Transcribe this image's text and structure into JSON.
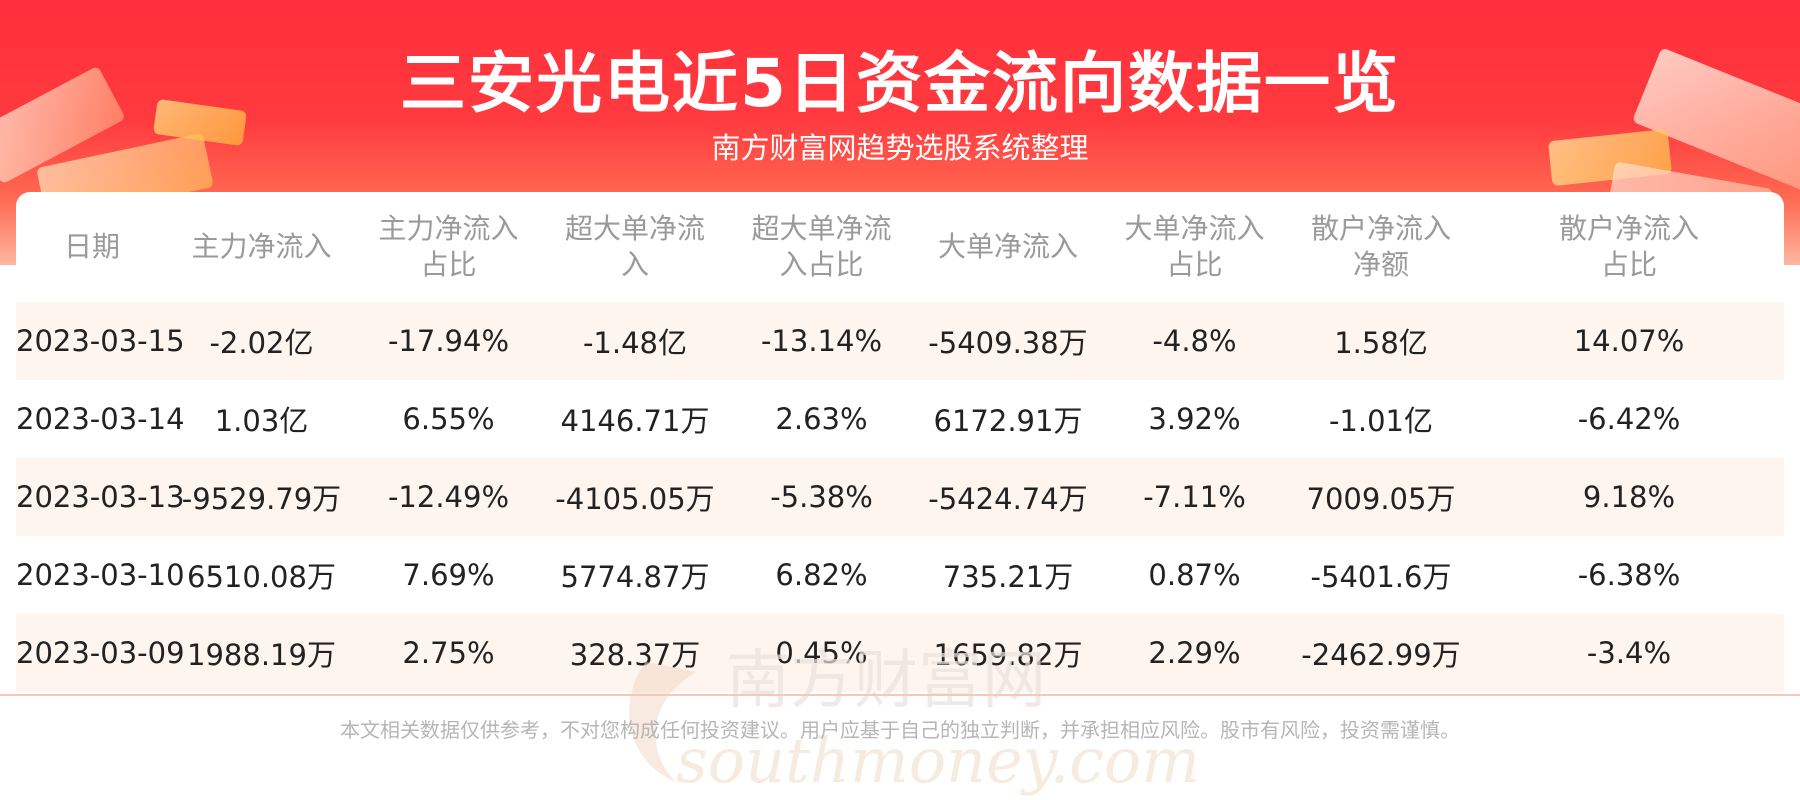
{
  "header": {
    "title": "三安光电近5日资金流向数据一览",
    "subtitle": "南方财富网趋势选股系统整理"
  },
  "table": {
    "columns": [
      [
        "日期"
      ],
      [
        "主力净流入"
      ],
      [
        "主力净流入",
        "占比"
      ],
      [
        "超大单净流",
        "入"
      ],
      [
        "超大单净流",
        "入占比"
      ],
      [
        "大单净流入"
      ],
      [
        "大单净流入",
        "占比"
      ],
      [
        "散户净流入",
        "净额"
      ],
      [
        "散户净流入",
        "占比"
      ]
    ],
    "rows": [
      [
        "2023-03-15",
        "-2.02亿",
        "-17.94%",
        "-1.48亿",
        "-13.14%",
        "-5409.38万",
        "-4.8%",
        "1.58亿",
        "14.07%"
      ],
      [
        "2023-03-14",
        "1.03亿",
        "6.55%",
        "4146.71万",
        "2.63%",
        "6172.91万",
        "3.92%",
        "-1.01亿",
        "-6.42%"
      ],
      [
        "2023-03-13",
        "-9529.79万",
        "-12.49%",
        "-4105.05万",
        "-5.38%",
        "-5424.74万",
        "-7.11%",
        "7009.05万",
        "9.18%"
      ],
      [
        "2023-03-10",
        "6510.08万",
        "7.69%",
        "5774.87万",
        "6.82%",
        "735.21万",
        "0.87%",
        "-5401.6万",
        "-6.38%"
      ],
      [
        "2023-03-09",
        "1988.19万",
        "2.75%",
        "328.37万",
        "0.45%",
        "1659.82万",
        "2.29%",
        "-2462.99万",
        "-3.4%"
      ]
    ]
  },
  "watermark": {
    "cn": "南方财富网",
    "en": "southmoney.com"
  },
  "footer": {
    "disclaimer": "本文相关数据仅供参考，不对您构成任何投资建议。用户应基于自己的独立判断，并承担相应风险。股市有风险，投资需谨慎。"
  },
  "colors": {
    "header_red": "#ff2f3b",
    "row_shade": "#fdf5ee",
    "header_text": "#9a9a9a"
  }
}
